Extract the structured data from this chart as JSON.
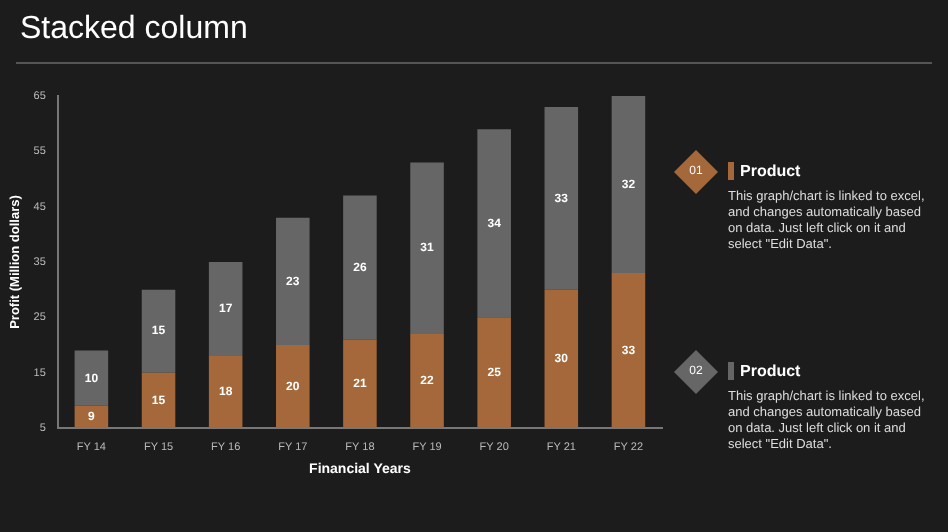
{
  "chart_data": {
    "type": "bar",
    "title": "Stacked column",
    "xlabel": "Financial Years",
    "ylabel": "Profit (Million dollars)",
    "categories": [
      "FY 14",
      "FY 15",
      "FY 16",
      "FY 17",
      "FY 18",
      "FY 19",
      "FY 20",
      "FY 21",
      "FY 22"
    ],
    "series": [
      {
        "name": "Product",
        "color": "#a5683a",
        "values": [
          9,
          15,
          18,
          20,
          21,
          22,
          25,
          30,
          33
        ]
      },
      {
        "name": "Product",
        "color": "#666666",
        "values": [
          10,
          15,
          17,
          23,
          26,
          31,
          34,
          33,
          32
        ]
      }
    ],
    "stacked": true,
    "data_labels": true,
    "grid": false,
    "legend": "right",
    "ylim": [
      5,
      65
    ],
    "yticks": [
      5,
      15,
      25,
      35,
      45,
      55,
      65
    ],
    "annotations": [
      "01",
      "This graph/chart is linked to excel, and changes automatically based on data. Just left click on it and select \"Edit Data\".",
      "02",
      "This graph/chart is linked to excel, and changes automatically based on data. Just left click on it and select \"Edit Data\"."
    ]
  }
}
